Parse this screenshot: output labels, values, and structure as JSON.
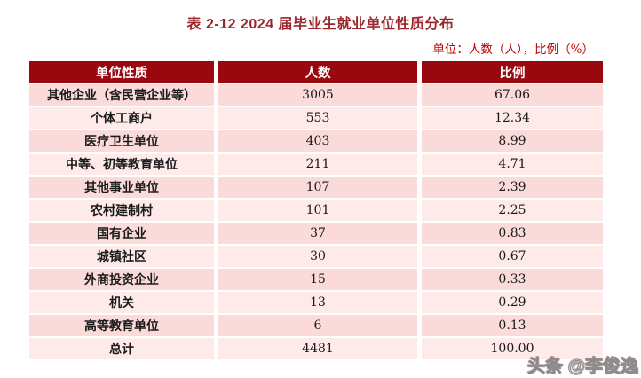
{
  "title": "表 2-12  2024 届毕业生就业单位性质分布",
  "unit_note": "单位：人数（人），比例（%）",
  "table": {
    "headers": [
      "单位性质",
      "人数",
      "比例"
    ],
    "rows": [
      [
        "其他企业（含民营企业等）",
        "3005",
        "67.06"
      ],
      [
        "个体工商户",
        "553",
        "12.34"
      ],
      [
        "医疗卫生单位",
        "403",
        "8.99"
      ],
      [
        "中等、初等教育单位",
        "211",
        "4.71"
      ],
      [
        "其他事业单位",
        "107",
        "2.39"
      ],
      [
        "农村建制村",
        "101",
        "2.25"
      ],
      [
        "国有企业",
        "37",
        "0.83"
      ],
      [
        "城镇社区",
        "30",
        "0.67"
      ],
      [
        "外商投资企业",
        "15",
        "0.33"
      ],
      [
        "机关",
        "13",
        "0.29"
      ],
      [
        "高等教育单位",
        "6",
        "0.13"
      ],
      [
        "总计",
        "4481",
        "100.00"
      ]
    ]
  },
  "watermark": "头条 @李俊逸",
  "colors": {
    "header_bg": "#99080F",
    "row_odd_bg": "#FBDBDA",
    "row_even_bg": "#FDEAE9",
    "title_color": "#9C262C",
    "unit_note_color": "#C00000"
  }
}
